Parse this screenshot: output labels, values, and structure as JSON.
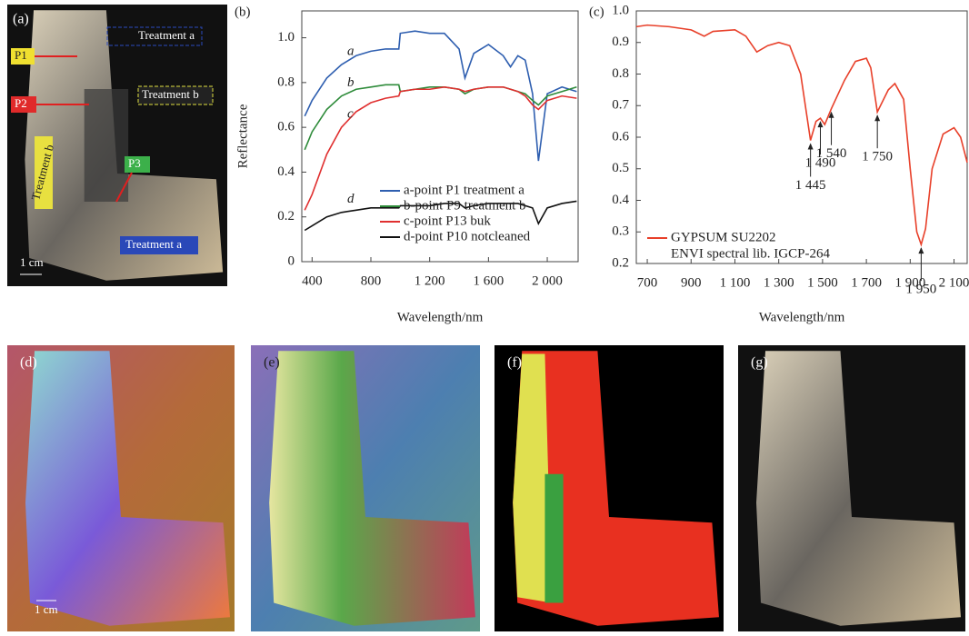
{
  "photos": {
    "a": {
      "label": "(a)",
      "annotations": [
        "Treatment a",
        "P1",
        "P2",
        "Treatment b",
        "Treatment b",
        "P3",
        "Treatment a"
      ],
      "scale": "1 cm"
    },
    "d": {
      "label": "(d)",
      "scale": "1 cm"
    },
    "e": {
      "label": "(e)"
    },
    "f": {
      "label": "(f)"
    },
    "g": {
      "label": "(g)"
    }
  },
  "chart_data": [
    {
      "type": "line",
      "panel_label": "(b)",
      "x_label": "Wavelength/nm",
      "y_label": "Reflectance",
      "x": [
        350,
        400,
        500,
        600,
        700,
        800,
        900,
        990,
        1000,
        1100,
        1200,
        1300,
        1400,
        1440,
        1500,
        1600,
        1700,
        1750,
        1800,
        1850,
        1900,
        1940,
        2000,
        2100,
        2200
      ],
      "series": [
        {
          "name": "a-point P1 treatment a",
          "label": "a",
          "color": "#2f5fb0",
          "values": [
            0.65,
            0.72,
            0.82,
            0.88,
            0.92,
            0.94,
            0.95,
            0.95,
            1.02,
            1.03,
            1.02,
            1.02,
            0.95,
            0.82,
            0.93,
            0.97,
            0.92,
            0.87,
            0.92,
            0.9,
            0.75,
            0.45,
            0.75,
            0.78,
            0.76
          ]
        },
        {
          "name": "b-point P9 treatment b",
          "label": "b",
          "color": "#2e8b3a",
          "values": [
            0.5,
            0.58,
            0.68,
            0.74,
            0.77,
            0.78,
            0.79,
            0.79,
            0.76,
            0.77,
            0.78,
            0.78,
            0.77,
            0.75,
            0.77,
            0.78,
            0.78,
            0.77,
            0.76,
            0.75,
            0.72,
            0.7,
            0.74,
            0.76,
            0.78
          ]
        },
        {
          "name": "c-point P13 buk",
          "label": "c",
          "color": "#e03030",
          "values": [
            0.23,
            0.3,
            0.48,
            0.6,
            0.67,
            0.71,
            0.73,
            0.74,
            0.76,
            0.77,
            0.77,
            0.78,
            0.77,
            0.76,
            0.77,
            0.78,
            0.78,
            0.77,
            0.76,
            0.74,
            0.7,
            0.68,
            0.72,
            0.74,
            0.73
          ]
        },
        {
          "name": "d-point P10 notcleaned",
          "label": "d",
          "color": "#111111",
          "values": [
            0.14,
            0.16,
            0.2,
            0.22,
            0.23,
            0.24,
            0.24,
            0.24,
            0.25,
            0.25,
            0.25,
            0.26,
            0.26,
            0.24,
            0.25,
            0.26,
            0.26,
            0.26,
            0.26,
            0.25,
            0.24,
            0.17,
            0.24,
            0.26,
            0.27
          ]
        }
      ],
      "xlim": [
        330,
        2210
      ],
      "xticks": [
        400,
        800,
        {
          "value": 1200,
          "label": "1 200"
        },
        {
          "value": 1600,
          "label": "1 600"
        },
        {
          "value": 2000,
          "label": "2 000"
        }
      ],
      "ylim": [
        0,
        1.12
      ],
      "yticks": [
        0,
        0.2,
        0.4,
        0.6,
        0.8,
        {
          "value": 1,
          "label": "1.0"
        }
      ]
    },
    {
      "type": "line",
      "panel_label": "(c)",
      "x_label": "Wavelength/nm",
      "legend_note": "ENVI spectral lib. IGCP-264",
      "x": [
        650,
        700,
        800,
        900,
        960,
        1000,
        1100,
        1150,
        1200,
        1250,
        1300,
        1350,
        1400,
        1445,
        1470,
        1490,
        1510,
        1540,
        1600,
        1650,
        1700,
        1720,
        1750,
        1800,
        1830,
        1870,
        1900,
        1930,
        1950,
        1970,
        2000,
        2050,
        2100,
        2130,
        2160
      ],
      "series": [
        {
          "name": "GYPSUM SU2202",
          "color": "#e8402a",
          "values": [
            0.95,
            0.955,
            0.95,
            0.94,
            0.92,
            0.935,
            0.94,
            0.92,
            0.87,
            0.89,
            0.9,
            0.89,
            0.8,
            0.59,
            0.65,
            0.66,
            0.64,
            0.69,
            0.78,
            0.84,
            0.85,
            0.82,
            0.68,
            0.75,
            0.77,
            0.72,
            0.5,
            0.3,
            0.26,
            0.31,
            0.5,
            0.61,
            0.63,
            0.6,
            0.52
          ]
        }
      ],
      "annotations": [
        {
          "text": "1 445",
          "x": 1445,
          "y": 0.59
        },
        {
          "text": "1 490",
          "x": 1490,
          "y": 0.66
        },
        {
          "text": "1 540",
          "x": 1540,
          "y": 0.69
        },
        {
          "text": "1 750",
          "x": 1750,
          "y": 0.68
        },
        {
          "text": "1 950",
          "x": 1950,
          "y": 0.26
        }
      ],
      "xlim": [
        650,
        2160
      ],
      "xticks": [
        700,
        900,
        {
          "value": 1100,
          "label": "1 100"
        },
        {
          "value": 1300,
          "label": "1 300"
        },
        {
          "value": 1500,
          "label": "1 500"
        },
        {
          "value": 1700,
          "label": "1 700"
        },
        {
          "value": 1900,
          "label": "1 900"
        },
        {
          "value": 2100,
          "label": "2 100"
        }
      ],
      "ylim": [
        0.2,
        1
      ],
      "yticks": [
        0.2,
        0.3,
        0.4,
        0.5,
        0.6,
        0.7,
        0.8,
        0.9,
        {
          "value": 1,
          "label": "1.0"
        }
      ]
    }
  ]
}
